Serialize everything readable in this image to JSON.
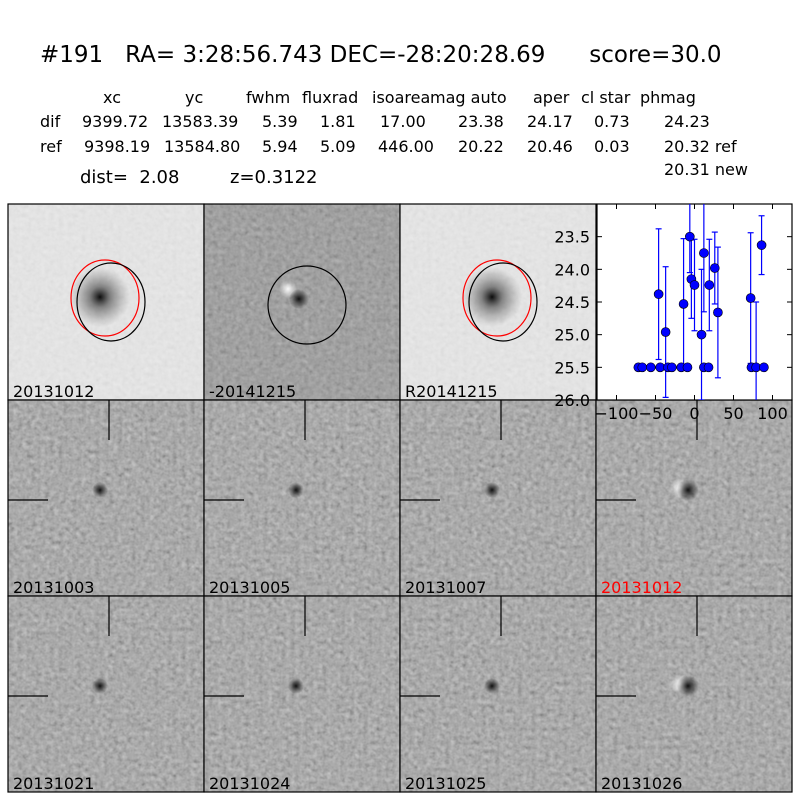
{
  "title": "#191   RA= 3:28:56.743 DEC=-28:20:28.69      score=30.0",
  "table": {
    "columns": [
      "xc",
      "yc",
      "fwhm",
      "fluxrad",
      "isoarea",
      "mag auto",
      "aper",
      "cl star",
      "phmag"
    ],
    "rows": [
      {
        "label": "dif",
        "values": [
          "9399.72",
          "13583.39",
          "5.39",
          "1.81",
          "17.00",
          "23.38",
          "24.17",
          "0.73",
          "24.23"
        ]
      },
      {
        "label": "ref",
        "values": [
          "9398.19",
          "13584.80",
          "5.94",
          "5.09",
          "446.00",
          "20.22",
          "20.46",
          "0.03",
          "20.32 ref"
        ]
      }
    ],
    "extra_phmag": "20.31 new",
    "dist": "dist=  2.08",
    "z": "z=0.3122"
  },
  "panels": [
    {
      "label": "20131012",
      "kind": "ref",
      "label_color": "#000000"
    },
    {
      "label": "-20141215",
      "kind": "diff",
      "label_color": "#000000"
    },
    {
      "label": "R20141215",
      "kind": "ref",
      "label_color": "#000000"
    },
    {
      "label": "20131003",
      "kind": "stamp",
      "label_color": "#000000"
    },
    {
      "label": "20131005",
      "kind": "stamp",
      "label_color": "#000000"
    },
    {
      "label": "20131007",
      "kind": "stamp",
      "label_color": "#000000"
    },
    {
      "label": "20131012",
      "kind": "stamp-dipole",
      "label_color": "#ff0000"
    },
    {
      "label": "20131021",
      "kind": "stamp",
      "label_color": "#000000"
    },
    {
      "label": "20131024",
      "kind": "stamp",
      "label_color": "#000000"
    },
    {
      "label": "20131025",
      "kind": "stamp",
      "label_color": "#000000"
    },
    {
      "label": "20131026",
      "kind": "stamp-dipole",
      "label_color": "#000000"
    }
  ],
  "colors": {
    "marker": "#0000ff",
    "circle_new": "#ff0000",
    "circle_ref": "#000000"
  },
  "chart_data": {
    "type": "scatter",
    "error_bars": true,
    "xlim": [
      -125,
      125
    ],
    "ylim": [
      26.0,
      23.0
    ],
    "y_inverted": true,
    "xticks": [
      -100,
      -50,
      0,
      50,
      100
    ],
    "yticks": [
      23.5,
      24.0,
      24.5,
      25.0,
      25.5,
      26.0
    ],
    "xtick_labels": [
      "−100",
      "−50",
      "0",
      "50",
      "100"
    ],
    "ytick_labels": [
      "23.5",
      "24.0",
      "24.5",
      "25.0",
      "25.5",
      "26.0"
    ],
    "grid": false,
    "points": [
      {
        "x": -72,
        "y": 25.5,
        "err": 0.05
      },
      {
        "x": -67,
        "y": 25.5,
        "err": 0.05
      },
      {
        "x": -56,
        "y": 25.5,
        "err": 0.05
      },
      {
        "x": -44,
        "y": 25.5,
        "err": 0.05
      },
      {
        "x": -34,
        "y": 25.5,
        "err": 0.05
      },
      {
        "x": -29,
        "y": 25.5,
        "err": 0.05
      },
      {
        "x": -17,
        "y": 25.5,
        "err": 0.05
      },
      {
        "x": -9,
        "y": 25.5,
        "err": 0.05
      },
      {
        "x": -46,
        "y": 24.38,
        "err": 1.0
      },
      {
        "x": -37,
        "y": 24.96,
        "err": 1.0
      },
      {
        "x": -14,
        "y": 24.53,
        "err": 1.0
      },
      {
        "x": -6,
        "y": 23.5,
        "err": 0.55
      },
      {
        "x": -4,
        "y": 24.15,
        "err": 0.6
      },
      {
        "x": 0,
        "y": 24.24,
        "err": 0.7
      },
      {
        "x": 9,
        "y": 25.0,
        "err": 1.0
      },
      {
        "x": 12,
        "y": 23.75,
        "err": 0.9
      },
      {
        "x": 12,
        "y": 25.5,
        "err": 0.05
      },
      {
        "x": 18,
        "y": 25.5,
        "err": 0.05
      },
      {
        "x": 19,
        "y": 24.24,
        "err": 0.7
      },
      {
        "x": 26,
        "y": 23.98,
        "err": 0.55
      },
      {
        "x": 30,
        "y": 24.66,
        "err": 1.0
      },
      {
        "x": 72,
        "y": 24.44,
        "err": 1.0
      },
      {
        "x": 73,
        "y": 25.5,
        "err": 0.05
      },
      {
        "x": 79,
        "y": 25.5,
        "err": 1.0
      },
      {
        "x": 89,
        "y": 25.5,
        "err": 0.05
      },
      {
        "x": 86,
        "y": 23.63,
        "err": 0.45
      }
    ]
  }
}
